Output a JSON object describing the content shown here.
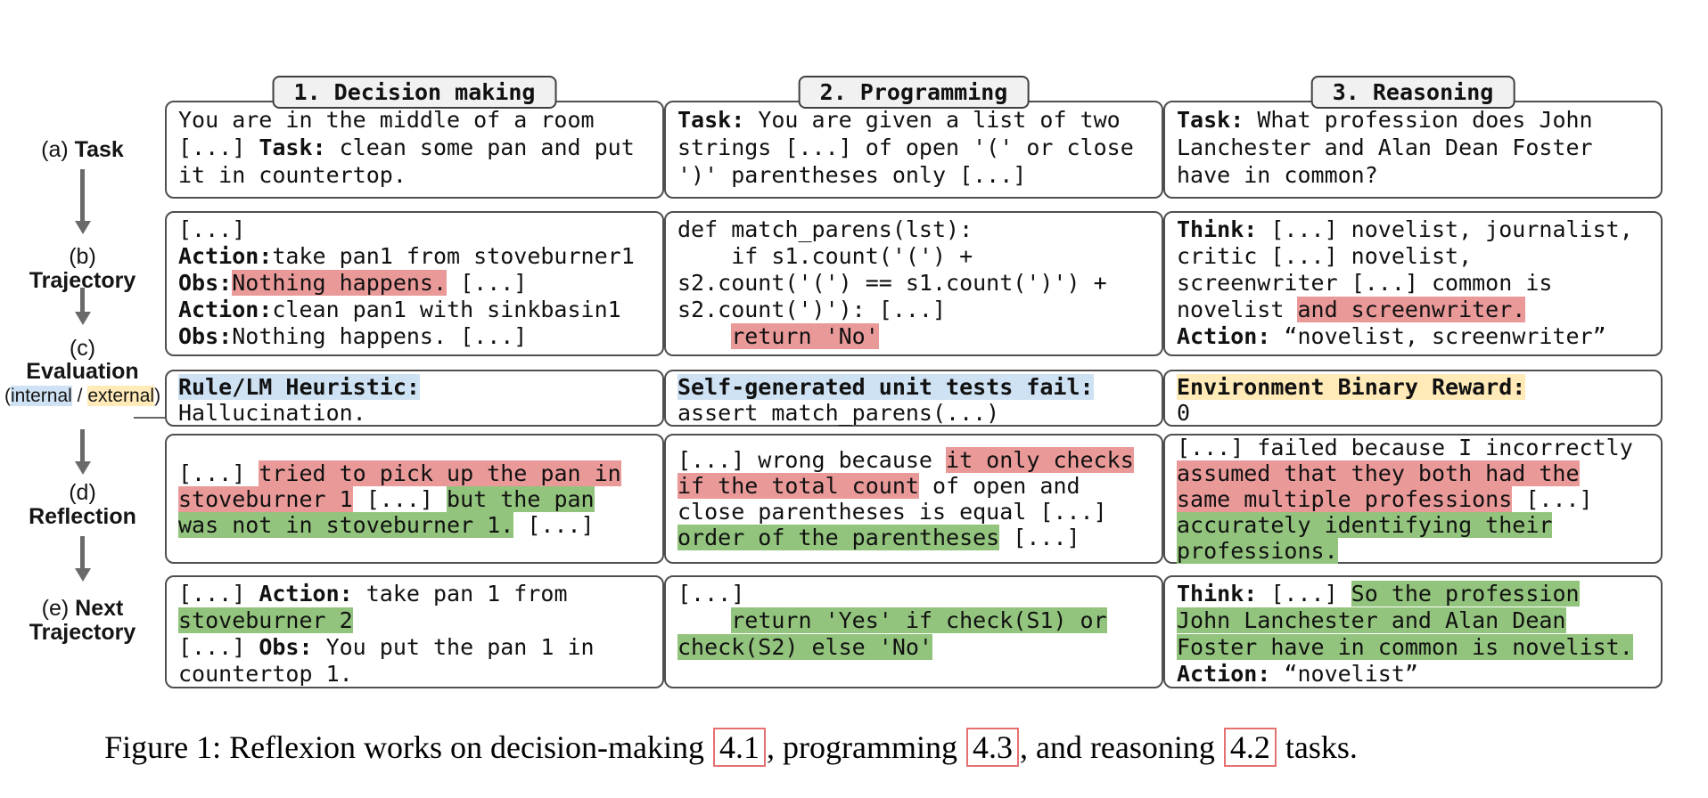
{
  "palette": {
    "hl-red": "#ea9999",
    "hl-green": "#93c47d",
    "hl-blue": "#cfe2f3",
    "hl-yellow": "#ffeab8",
    "box-border": "#4f4f4f",
    "tab-bg": "#f1f1f1",
    "arrow": "#6a6a6a",
    "ref-border": "#e57070",
    "text": "#111111"
  },
  "left_labels": {
    "a": [
      [
        {
          "t": "(a) "
        },
        {
          "t": "Task",
          "b": true
        }
      ]
    ],
    "b": [
      [
        {
          "t": "(b)"
        }
      ],
      [
        {
          "t": "Trajectory",
          "b": true
        }
      ]
    ],
    "c": [
      [
        {
          "t": "(c)"
        }
      ],
      [
        {
          "t": "Evaluation",
          "b": true
        }
      ],
      [
        {
          "t": "(",
          "sm": true
        },
        {
          "t": "internal",
          "sm": true,
          "h": "blue"
        },
        {
          "t": " / ",
          "sm": true
        },
        {
          "t": "external",
          "sm": true,
          "h": "yellow"
        },
        {
          "t": ")",
          "sm": true
        }
      ]
    ],
    "d": [
      [
        {
          "t": "(d)"
        }
      ],
      [
        {
          "t": "Reflection",
          "b": true
        }
      ]
    ],
    "e": [
      [
        {
          "t": "(e) "
        },
        {
          "t": "Next",
          "b": true
        }
      ],
      [
        {
          "t": "Trajectory",
          "b": true
        }
      ]
    ]
  },
  "columns": [
    {
      "id": "decision-making",
      "header": "1. Decision making",
      "task": [
        [
          {
            "t": "You are in the middle of a room"
          }
        ],
        [
          {
            "t": "[...] "
          },
          {
            "t": "Task:",
            "b": true
          },
          {
            "t": " clean some pan and put"
          }
        ],
        [
          {
            "t": "it in countertop."
          }
        ]
      ],
      "trajectory": [
        [
          {
            "t": "[...]"
          }
        ],
        [
          {
            "t": "Action:",
            "b": true
          },
          {
            "t": "take pan1 from stoveburner1"
          }
        ],
        [
          {
            "t": "Obs:",
            "b": true
          },
          {
            "t": "Nothing happens.",
            "h": "red"
          },
          {
            "t": " [...]"
          }
        ],
        [
          {
            "t": "Action:",
            "b": true
          },
          {
            "t": "clean pan1 with sinkbasin1"
          }
        ],
        [
          {
            "t": "Obs:",
            "b": true
          },
          {
            "t": "Nothing happens. [...]"
          }
        ]
      ],
      "evaluation": [
        [
          {
            "t": "Rule/LM Heuristic:",
            "b": true,
            "h": "blue"
          }
        ],
        [
          {
            "t": "Hallucination."
          }
        ]
      ],
      "reflection": [
        [
          {
            "t": "[...] "
          },
          {
            "t": "tried to pick up the pan in",
            "h": "red"
          }
        ],
        [
          {
            "t": "stoveburner 1",
            "h": "red"
          },
          {
            "t": " [...] "
          },
          {
            "t": "but the pan",
            "h": "green"
          }
        ],
        [
          {
            "t": "was not in stoveburner 1.",
            "h": "green"
          },
          {
            "t": " [...]"
          }
        ]
      ],
      "next_trajectory": [
        [
          {
            "t": "[...] "
          },
          {
            "t": "Action:",
            "b": true
          },
          {
            "t": " take pan 1 from"
          }
        ],
        [
          {
            "t": "stoveburner 2",
            "h": "green"
          }
        ],
        [
          {
            "t": "[...] "
          },
          {
            "t": "Obs:",
            "b": true
          },
          {
            "t": " You put the pan 1 in"
          }
        ],
        [
          {
            "t": "countertop 1."
          }
        ]
      ]
    },
    {
      "id": "programming",
      "header": "2. Programming",
      "task": [
        [
          {
            "t": "Task:",
            "b": true
          },
          {
            "t": " You are given a list of two"
          }
        ],
        [
          {
            "t": "strings [...] of open '(' or close"
          }
        ],
        [
          {
            "t": "')' parentheses only [...]"
          }
        ]
      ],
      "trajectory": [
        [
          {
            "t": "def match_parens(lst):"
          }
        ],
        [
          {
            "t": "    if s1.count('(') +"
          }
        ],
        [
          {
            "t": "s2.count('(') == s1.count(')') +"
          }
        ],
        [
          {
            "t": "s2.count(')'): [...]"
          }
        ],
        [
          {
            "t": "    "
          },
          {
            "t": "return 'No'",
            "h": "red"
          }
        ]
      ],
      "evaluation": [
        [
          {
            "t": "Self-generated unit tests fail:",
            "b": true,
            "h": "blue"
          }
        ],
        [
          {
            "t": "assert match_parens(...)"
          }
        ]
      ],
      "reflection": [
        [
          {
            "t": "[...] wrong because "
          },
          {
            "t": "it only checks",
            "h": "red"
          }
        ],
        [
          {
            "t": "if the total count",
            "h": "red"
          },
          {
            "t": " of open and"
          }
        ],
        [
          {
            "t": "close parentheses is equal [...]"
          }
        ],
        [
          {
            "t": "order of the parentheses",
            "h": "green"
          },
          {
            "t": " [...]"
          }
        ]
      ],
      "next_trajectory": [
        [
          {
            "t": "[...]"
          }
        ],
        [
          {
            "t": "    "
          },
          {
            "t": "return 'Yes' if check(S1) or",
            "h": "green"
          }
        ],
        [
          {
            "t": "check(S2) else 'No'",
            "h": "green"
          }
        ]
      ]
    },
    {
      "id": "reasoning",
      "header": "3. Reasoning",
      "task": [
        [
          {
            "t": "Task:",
            "b": true
          },
          {
            "t": " What profession does John"
          }
        ],
        [
          {
            "t": "Lanchester and Alan Dean Foster"
          }
        ],
        [
          {
            "t": "have in common?"
          }
        ]
      ],
      "trajectory": [
        [
          {
            "t": "Think:",
            "b": true
          },
          {
            "t": " [...] novelist, journalist,"
          }
        ],
        [
          {
            "t": "critic [...] novelist,"
          }
        ],
        [
          {
            "t": "screenwriter [...] common is"
          }
        ],
        [
          {
            "t": "novelist "
          },
          {
            "t": "and screenwriter.",
            "h": "red"
          }
        ],
        [
          {
            "t": "Action:",
            "b": true
          },
          {
            "t": " “novelist, screenwriter”"
          }
        ]
      ],
      "evaluation": [
        [
          {
            "t": "Environment Binary Reward:",
            "b": true,
            "h": "yellow"
          }
        ],
        [
          {
            "t": "0"
          }
        ]
      ],
      "reflection": [
        [
          {
            "t": "[...] failed because I incorrectly"
          }
        ],
        [
          {
            "t": "assumed that they both had the",
            "h": "red"
          }
        ],
        [
          {
            "t": "same multiple professions",
            "h": "red"
          },
          {
            "t": " [...]"
          }
        ],
        [
          {
            "t": "accurately identifying their",
            "h": "green"
          }
        ],
        [
          {
            "t": "professions.",
            "h": "green"
          }
        ]
      ],
      "next_trajectory": [
        [
          {
            "t": "Think:",
            "b": true
          },
          {
            "t": " [...] "
          },
          {
            "t": "So the profession",
            "h": "green"
          }
        ],
        [
          {
            "t": "John Lanchester and Alan Dean",
            "h": "green"
          }
        ],
        [
          {
            "t": "Foster have in common is novelist.",
            "h": "green"
          }
        ],
        [
          {
            "t": "Action:",
            "b": true
          },
          {
            "t": " “novelist”"
          }
        ]
      ]
    }
  ],
  "caption": [
    [
      {
        "t": "Figure 1: Reflexion works on decision-making "
      },
      {
        "t": "4.1",
        "h": "ref"
      },
      {
        "t": ", programming "
      },
      {
        "t": "4.3",
        "h": "ref"
      },
      {
        "t": ", and reasoning "
      },
      {
        "t": "4.2",
        "h": "ref"
      },
      {
        "t": " tasks."
      }
    ]
  ]
}
